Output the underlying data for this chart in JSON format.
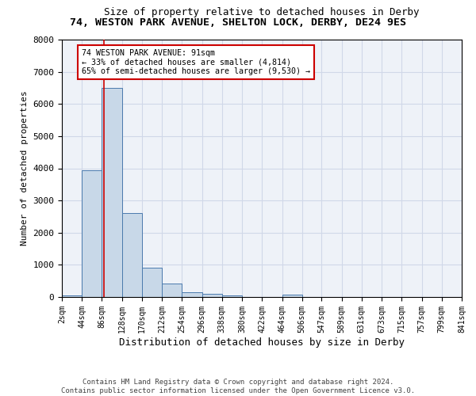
{
  "title_line1": "74, WESTON PARK AVENUE, SHELTON LOCK, DERBY, DE24 9ES",
  "title_line2": "Size of property relative to detached houses in Derby",
  "xlabel": "Distribution of detached houses by size in Derby",
  "ylabel": "Number of detached properties",
  "bin_edges": [
    2,
    44,
    86,
    128,
    170,
    212,
    254,
    296,
    338,
    380,
    422,
    464,
    506,
    547,
    589,
    631,
    673,
    715,
    757,
    799,
    841
  ],
  "bin_counts": [
    50,
    3950,
    6500,
    2600,
    900,
    420,
    150,
    100,
    50,
    0,
    0,
    80,
    0,
    0,
    0,
    0,
    0,
    0,
    0,
    0
  ],
  "bar_color": "#c8d8e8",
  "bar_edge_color": "#4a7aad",
  "property_size": 91,
  "annotation_text": "74 WESTON PARK AVENUE: 91sqm\n← 33% of detached houses are smaller (4,814)\n65% of semi-detached houses are larger (9,530) →",
  "annotation_box_color": "#ffffff",
  "annotation_box_edge": "#cc0000",
  "vline_color": "#cc0000",
  "grid_color": "#d0d8e8",
  "background_color": "#eef2f8",
  "footnote": "Contains HM Land Registry data © Crown copyright and database right 2024.\nContains public sector information licensed under the Open Government Licence v3.0.",
  "ylim": [
    0,
    8000
  ],
  "tick_labels": [
    "2sqm",
    "44sqm",
    "86sqm",
    "128sqm",
    "170sqm",
    "212sqm",
    "254sqm",
    "296sqm",
    "338sqm",
    "380sqm",
    "422sqm",
    "464sqm",
    "506sqm",
    "547sqm",
    "589sqm",
    "631sqm",
    "673sqm",
    "715sqm",
    "757sqm",
    "799sqm",
    "841sqm"
  ]
}
